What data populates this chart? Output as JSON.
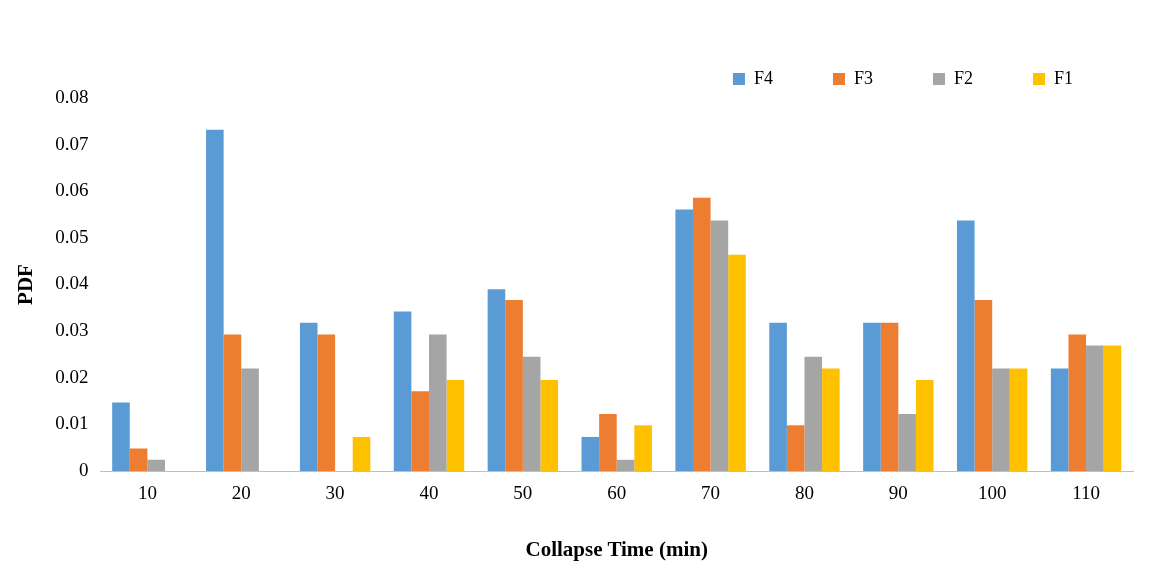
{
  "chart_data": {
    "type": "bar",
    "xlabel": "Collapse Time (min)",
    "ylabel": "PDF",
    "categories": [
      "10",
      "20",
      "30",
      "40",
      "50",
      "60",
      "70",
      "80",
      "90",
      "100",
      "110"
    ],
    "series": [
      {
        "name": "F4",
        "color": "#5b9bd5",
        "values": [
          0.0147,
          0.0732,
          0.0318,
          0.0342,
          0.039,
          0.0073,
          0.0561,
          0.0318,
          0.0318,
          0.0537,
          0.022
        ]
      },
      {
        "name": "F3",
        "color": "#ed7d31",
        "values": [
          0.0048,
          0.0293,
          0.0293,
          0.0171,
          0.0367,
          0.0122,
          0.0586,
          0.0098,
          0.0318,
          0.0367,
          0.0293
        ]
      },
      {
        "name": "F2",
        "color": "#a5a5a5",
        "values": [
          0.0024,
          0.022,
          0,
          0.0293,
          0.0245,
          0.0024,
          0.0537,
          0.0245,
          0.0122,
          0.022,
          0.0269
        ]
      },
      {
        "name": "F1",
        "color": "#ffc000",
        "values": [
          0,
          0,
          0.0073,
          0.0195,
          0.0195,
          0.0098,
          0.0464,
          0.022,
          0.0195,
          0.022,
          0.0269
        ]
      }
    ],
    "ylim": [
      0,
      0.08
    ],
    "yticks": [
      0,
      0.01,
      0.02,
      0.03,
      0.04,
      0.05,
      0.06,
      0.07,
      0.08
    ],
    "grid": false,
    "legend": "top right"
  }
}
